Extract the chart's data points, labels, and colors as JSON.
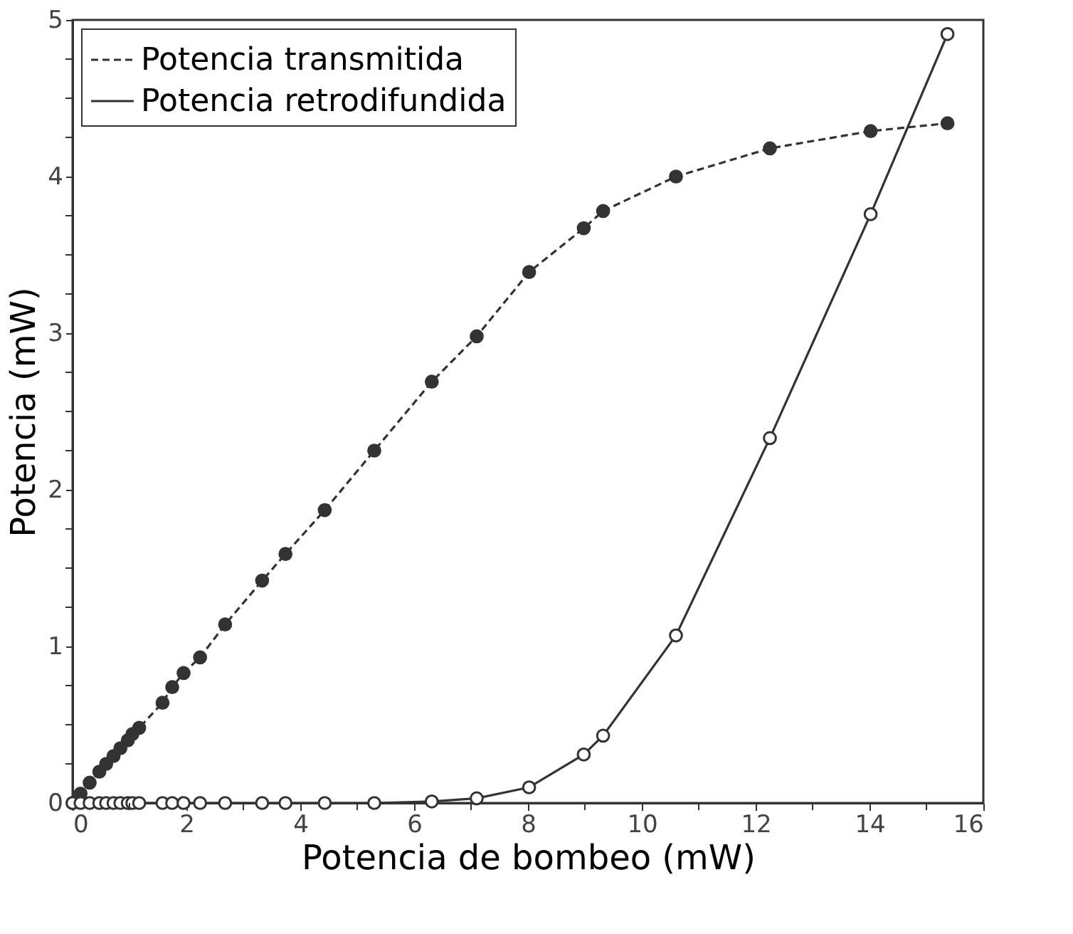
{
  "chart_data": {
    "type": "line",
    "xlabel": "Potencia de bombeo (mW)",
    "ylabel": "Potencia (mW)",
    "x": [
      0,
      0.14,
      0.3,
      0.47,
      0.59,
      0.72,
      0.84,
      0.97,
      1.05,
      1.17,
      1.58,
      1.75,
      1.95,
      2.24,
      2.68,
      3.33,
      3.74,
      4.43,
      5.3,
      6.31,
      7.1,
      8.02,
      8.98,
      9.32,
      10.6,
      12.25,
      14.02,
      15.37
    ],
    "series": [
      {
        "name": "Potencia transmitida",
        "color": "#333333",
        "line_style": "dashed",
        "values": [
          0,
          0.06,
          0.13,
          0.2,
          0.25,
          0.3,
          0.35,
          0.4,
          0.44,
          0.48,
          0.64,
          0.74,
          0.83,
          0.93,
          1.14,
          1.42,
          1.59,
          1.87,
          2.25,
          2.69,
          2.98,
          3.39,
          3.67,
          3.78,
          4.0,
          4.18,
          4.29,
          4.34
        ]
      },
      {
        "name": "Potencia retrodifundida",
        "color": "#333333",
        "line_style": "solid",
        "values": [
          0,
          0,
          0,
          0,
          0,
          0,
          0,
          0,
          0,
          0,
          0,
          0,
          0,
          0,
          0,
          0,
          0,
          0,
          0,
          0.01,
          0.03,
          0.1,
          0.31,
          0.43,
          1.07,
          2.33,
          3.76,
          4.91
        ]
      }
    ],
    "marker": "circle",
    "legend": "top left",
    "grid": false,
    "xlim": [
      0,
      16
    ],
    "ylim": [
      0,
      5
    ],
    "xticks": [
      0,
      {
        "value": 1,
        "label": null
      },
      2,
      {
        "value": 3,
        "label": null
      },
      4,
      {
        "value": 5,
        "label": null
      },
      6,
      {
        "value": 7,
        "label": null
      },
      8,
      {
        "value": 9,
        "label": null
      },
      10,
      {
        "value": 11,
        "label": null
      },
      12,
      {
        "value": 13,
        "label": null
      },
      14,
      {
        "value": 15,
        "label": null
      },
      16
    ],
    "yticks": [
      0,
      {
        "value": 0.25,
        "label": null
      },
      {
        "value": 0.5,
        "label": null
      },
      {
        "value": 0.75,
        "label": null
      },
      1,
      {
        "value": 1.25,
        "label": null
      },
      {
        "value": 1.5,
        "label": null
      },
      {
        "value": 1.75,
        "label": null
      },
      2,
      {
        "value": 2.25,
        "label": null
      },
      {
        "value": 2.5,
        "label": null
      },
      {
        "value": 2.75,
        "label": null
      },
      3,
      {
        "value": 3.25,
        "label": null
      },
      {
        "value": 3.5,
        "label": null
      },
      {
        "value": 3.75,
        "label": null
      },
      4,
      {
        "value": 4.25,
        "label": null
      },
      {
        "value": 4.5,
        "label": null
      },
      {
        "value": 4.75,
        "label": null
      },
      5
    ]
  }
}
